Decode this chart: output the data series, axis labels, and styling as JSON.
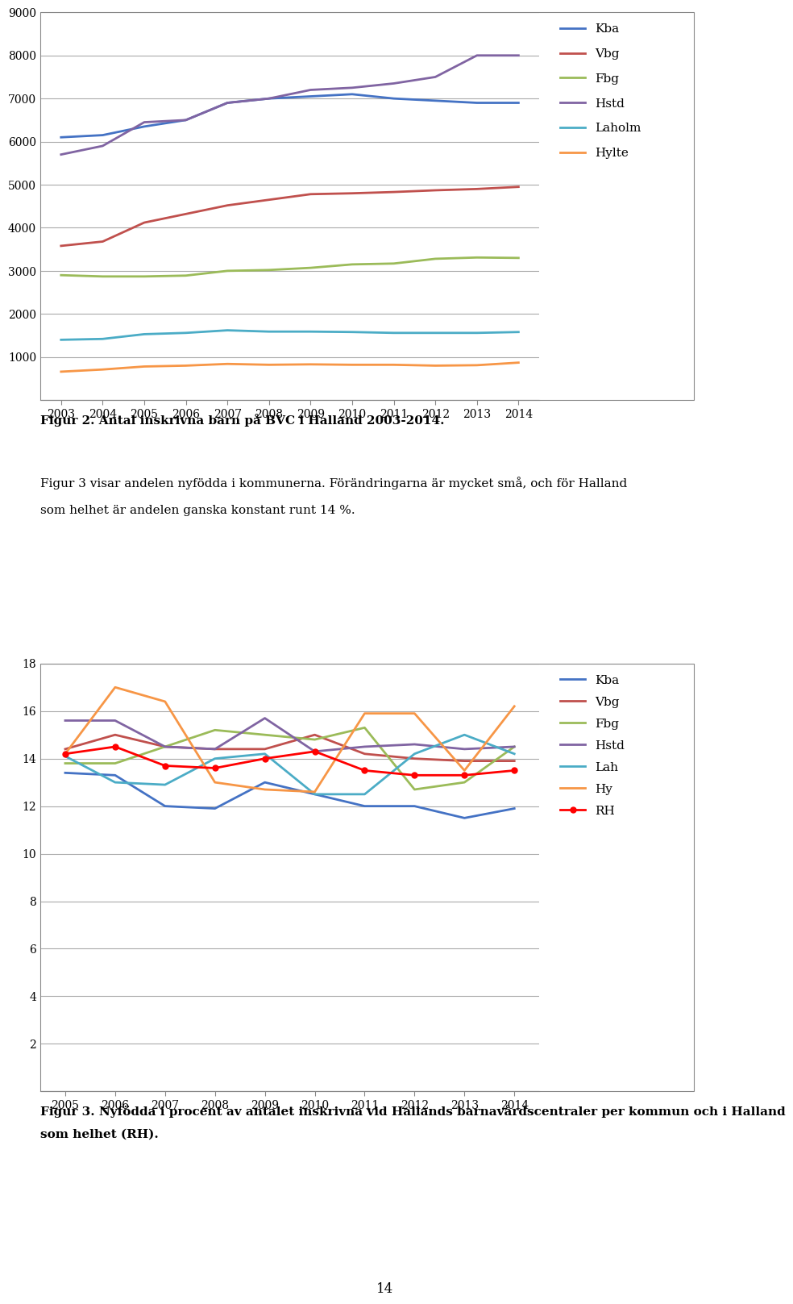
{
  "fig1": {
    "years": [
      2003,
      2004,
      2005,
      2006,
      2007,
      2008,
      2009,
      2010,
      2011,
      2012,
      2013,
      2014
    ],
    "Kba": [
      6100,
      6150,
      6350,
      6500,
      6900,
      7000,
      7050,
      7100,
      7000,
      6950,
      6900,
      6900
    ],
    "Vbg": [
      3580,
      3680,
      4120,
      4320,
      4520,
      4650,
      4780,
      4800,
      4830,
      4870,
      4900,
      4950
    ],
    "Fbg": [
      2900,
      2870,
      2870,
      2890,
      3000,
      3020,
      3070,
      3150,
      3170,
      3280,
      3310,
      3300
    ],
    "Hstd": [
      5700,
      5900,
      6450,
      6500,
      6900,
      7000,
      7200,
      7250,
      7350,
      7500,
      8000,
      8000
    ],
    "Laholm": [
      1400,
      1420,
      1530,
      1560,
      1620,
      1590,
      1590,
      1580,
      1560,
      1560,
      1560,
      1580
    ],
    "Hylte": [
      660,
      710,
      780,
      800,
      840,
      820,
      830,
      820,
      820,
      800,
      810,
      870
    ],
    "colors": {
      "Kba": "#4472C4",
      "Vbg": "#C0504D",
      "Fbg": "#9BBB59",
      "Hstd": "#8064A2",
      "Laholm": "#4BACC6",
      "Hylte": "#F79646"
    },
    "ylim": [
      0,
      9000
    ],
    "yticks": [
      0,
      1000,
      2000,
      3000,
      4000,
      5000,
      6000,
      7000,
      8000,
      9000
    ],
    "caption": "Figur 2. Antal inskrivna barn på BVC i Halland 2003-2014."
  },
  "text_line1": "Figur 3 visar andelen nyfödda i kommunerna. Förändringarna är mycket små, och för Halland",
  "text_line2": "som helhet är andelen ganska konstant runt 14 %.",
  "fig2": {
    "years": [
      2005,
      2006,
      2007,
      2008,
      2009,
      2010,
      2011,
      2012,
      2013,
      2014
    ],
    "Kba": [
      13.4,
      13.3,
      12.0,
      11.9,
      13.0,
      12.5,
      12.0,
      12.0,
      11.5,
      11.9
    ],
    "Vbg": [
      14.4,
      15.0,
      14.5,
      14.4,
      14.4,
      15.0,
      14.2,
      14.0,
      13.9,
      13.9
    ],
    "Fbg": [
      13.8,
      13.8,
      14.5,
      15.2,
      15.0,
      14.8,
      15.3,
      12.7,
      13.0,
      14.5
    ],
    "Hstd": [
      15.6,
      15.6,
      14.5,
      14.4,
      15.7,
      14.3,
      14.5,
      14.6,
      14.4,
      14.5
    ],
    "Lah": [
      14.1,
      13.0,
      12.9,
      14.0,
      14.2,
      12.5,
      12.5,
      14.2,
      15.0,
      14.2
    ],
    "Hy": [
      14.2,
      17.0,
      16.4,
      13.0,
      12.7,
      12.6,
      15.9,
      15.9,
      13.5,
      16.2
    ],
    "RH": [
      14.2,
      14.5,
      13.7,
      13.6,
      14.0,
      14.3,
      13.5,
      13.3,
      13.3,
      13.5
    ],
    "colors": {
      "Kba": "#4472C4",
      "Vbg": "#C0504D",
      "Fbg": "#9BBB59",
      "Hstd": "#8064A2",
      "Lah": "#4BACC6",
      "Hy": "#F79646",
      "RH": "#FF0000"
    },
    "ylim": [
      0,
      18
    ],
    "yticks": [
      0,
      2,
      4,
      6,
      8,
      10,
      12,
      14,
      16,
      18
    ],
    "caption1": "Figur 3. Nyfödda i procent av antalet inskrivna vid Hallands barnavårdscentr aler per kommun och i Halland",
    "caption1a": "Figur 3. Nyfödda i procent av antalet inskrivna vid Hallands barnavårdscentraler per kommun och i Halland",
    "caption2": "som helhet (RH)."
  },
  "page_number": "14",
  "background_color": "#FFFFFF",
  "grid_color": "#AAAAAA",
  "text_color": "#000000",
  "font_family": "serif"
}
